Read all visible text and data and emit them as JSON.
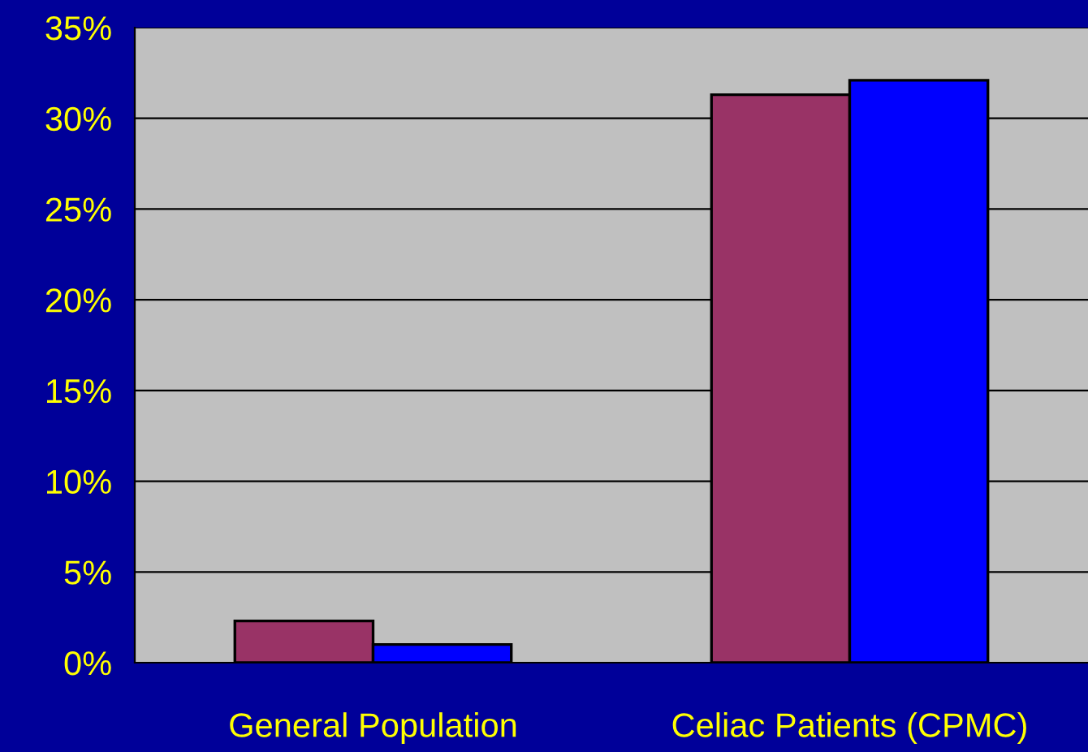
{
  "chart_data": {
    "type": "bar",
    "categories": [
      "General Population",
      "Celiac Patients (CPMC)"
    ],
    "series": [
      {
        "color": "#993366",
        "values": [
          2.3,
          31.3
        ]
      },
      {
        "color": "#0000ff",
        "values": [
          1.0,
          32.1
        ]
      }
    ],
    "ylim": [
      0,
      35
    ],
    "yticks": [
      {
        "value": 0,
        "label": "0%"
      },
      {
        "value": 5,
        "label": "5%"
      },
      {
        "value": 10,
        "label": "10%"
      },
      {
        "value": 15,
        "label": "15%"
      },
      {
        "value": 20,
        "label": "20%"
      },
      {
        "value": 25,
        "label": "25%"
      },
      {
        "value": 30,
        "label": "30%"
      },
      {
        "value": 35,
        "label": "35%"
      }
    ],
    "grid": "y",
    "legend": false
  }
}
